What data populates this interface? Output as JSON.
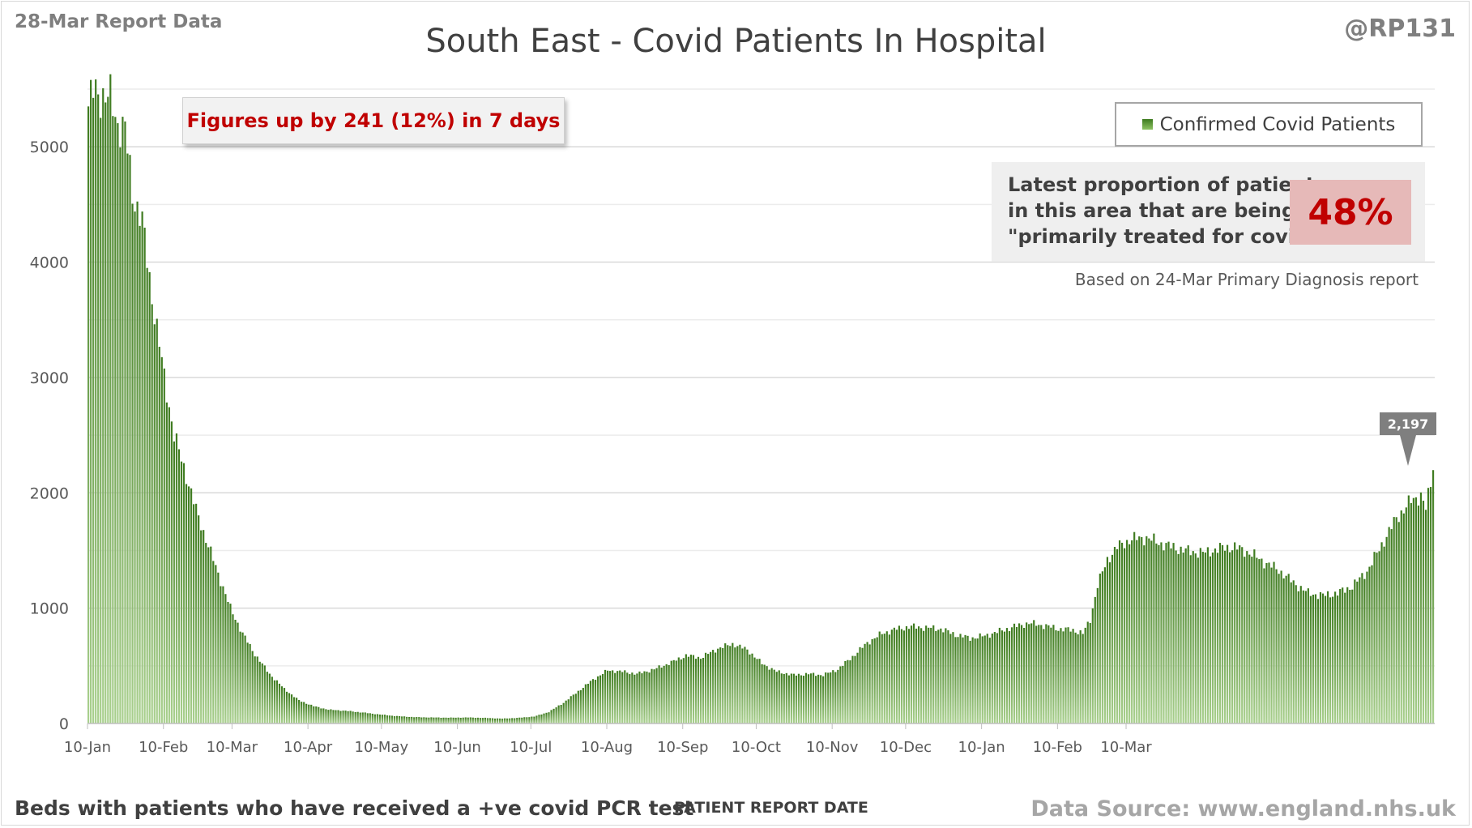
{
  "header": {
    "report_date": "28-Mar Report Data",
    "handle": "@RP131",
    "title": "South East - Covid Patients In Hospital"
  },
  "callout": {
    "text": "Figures up by 241 (12%) in 7 days"
  },
  "proportion": {
    "line1": "Latest proportion of patients",
    "line2": "in this area that are being",
    "line3": "\"primarily treated for covid\".",
    "value": "48%",
    "note": "Based on 24-Mar Primary Diagnosis report"
  },
  "footer": {
    "left": "Beds with patients who have received a +ve covid PCR test",
    "xlabel": "PATIENT REPORT DATE",
    "source": "Data Source: www.england.nhs.uk"
  },
  "colors": {
    "bar_top": "#3d7a1e",
    "bar_bottom": "#a9d08e",
    "callout_text": "#c00000",
    "gridline": "#d9d9d9"
  },
  "chart_data": {
    "type": "bar",
    "title": "South East - Covid Patients In Hospital",
    "ylim": [
      0,
      5500
    ],
    "yticks": [
      0,
      1000,
      2000,
      3000,
      4000,
      5000
    ],
    "xticks": [
      "10-Jan",
      "10-Feb",
      "10-Mar",
      "10-Apr",
      "10-May",
      "10-Jun",
      "10-Jul",
      "10-Aug",
      "10-Sep",
      "10-Oct",
      "10-Nov",
      "10-Dec",
      "10-Jan",
      "10-Feb",
      "10-Mar"
    ],
    "grid": true,
    "legend": {
      "label": "Confirmed Covid Patients",
      "placement": "top-right"
    },
    "series_name": "Confirmed Covid Patients",
    "last_label": "2,197",
    "last_value": 2197,
    "keypoints": [
      [
        0,
        5350
      ],
      [
        2,
        5480
      ],
      [
        5,
        5450
      ],
      [
        9,
        5420
      ],
      [
        12,
        5200
      ],
      [
        15,
        5150
      ],
      [
        18,
        4600
      ],
      [
        22,
        4350
      ],
      [
        26,
        3700
      ],
      [
        31,
        3000
      ],
      [
        35,
        2500
      ],
      [
        40,
        2150
      ],
      [
        44,
        1850
      ],
      [
        48,
        1600
      ],
      [
        53,
        1300
      ],
      [
        58,
        1000
      ],
      [
        63,
        780
      ],
      [
        68,
        600
      ],
      [
        74,
        430
      ],
      [
        80,
        300
      ],
      [
        86,
        200
      ],
      [
        92,
        150
      ],
      [
        98,
        120
      ],
      [
        105,
        110
      ],
      [
        112,
        95
      ],
      [
        118,
        80
      ],
      [
        125,
        65
      ],
      [
        133,
        55
      ],
      [
        140,
        52
      ],
      [
        148,
        50
      ],
      [
        155,
        52
      ],
      [
        162,
        48
      ],
      [
        169,
        42
      ],
      [
        175,
        48
      ],
      [
        182,
        60
      ],
      [
        188,
        100
      ],
      [
        194,
        180
      ],
      [
        200,
        280
      ],
      [
        206,
        380
      ],
      [
        212,
        460
      ],
      [
        218,
        450
      ],
      [
        224,
        430
      ],
      [
        231,
        470
      ],
      [
        238,
        530
      ],
      [
        244,
        590
      ],
      [
        250,
        570
      ],
      [
        257,
        650
      ],
      [
        263,
        690
      ],
      [
        269,
        640
      ],
      [
        275,
        520
      ],
      [
        281,
        450
      ],
      [
        288,
        420
      ],
      [
        294,
        430
      ],
      [
        300,
        420
      ],
      [
        306,
        470
      ],
      [
        312,
        580
      ],
      [
        318,
        700
      ],
      [
        324,
        780
      ],
      [
        330,
        820
      ],
      [
        336,
        840
      ],
      [
        342,
        830
      ],
      [
        348,
        820
      ],
      [
        354,
        770
      ],
      [
        360,
        740
      ],
      [
        366,
        760
      ],
      [
        372,
        800
      ],
      [
        378,
        840
      ],
      [
        384,
        870
      ],
      [
        390,
        850
      ],
      [
        396,
        820
      ],
      [
        402,
        810
      ],
      [
        406,
        780
      ],
      [
        409,
        900
      ],
      [
        412,
        1200
      ],
      [
        416,
        1420
      ],
      [
        420,
        1530
      ],
      [
        426,
        1600
      ],
      [
        432,
        1610
      ],
      [
        438,
        1560
      ],
      [
        444,
        1520
      ],
      [
        450,
        1490
      ],
      [
        456,
        1480
      ],
      [
        462,
        1520
      ],
      [
        468,
        1530
      ],
      [
        474,
        1480
      ],
      [
        480,
        1400
      ],
      [
        486,
        1330
      ],
      [
        492,
        1220
      ],
      [
        498,
        1130
      ],
      [
        504,
        1110
      ],
      [
        510,
        1130
      ],
      [
        516,
        1190
      ],
      [
        522,
        1320
      ],
      [
        528,
        1550
      ],
      [
        534,
        1780
      ],
      [
        540,
        1930
      ],
      [
        544,
        1980
      ],
      [
        546,
        1860
      ],
      [
        548,
        2080
      ],
      [
        549,
        2197
      ]
    ],
    "n_bars": 550
  }
}
